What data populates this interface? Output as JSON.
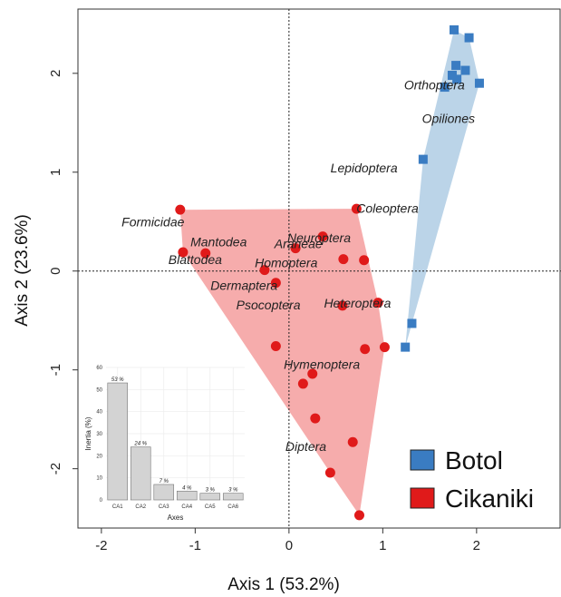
{
  "chart_data": [
    {
      "type": "scatter",
      "xlabel": "Axis 1 (53.2%)",
      "ylabel": "Axis 2 (23.6%)",
      "xlim": [
        -2.25,
        2.9
      ],
      "ylim": [
        -2.6,
        2.65
      ],
      "xticks": [
        "-2",
        "-1",
        "0",
        "1",
        "2"
      ],
      "yticks": [
        "-2",
        "-1",
        "0",
        "1",
        "2"
      ],
      "xtick_values": [
        -2,
        -1,
        0,
        1,
        2
      ],
      "ytick_values": [
        -2,
        -1,
        0,
        1,
        2
      ],
      "reference_lines": {
        "x": 0,
        "y": 0,
        "style": "dotted"
      },
      "legend_position": "bottom-right",
      "series": [
        {
          "name": "Botol",
          "marker": "square",
          "color": "#3a7cc2",
          "hull_color": "#b4cfe6",
          "points": [
            {
              "x": 1.76,
              "y": 2.44
            },
            {
              "x": 1.92,
              "y": 2.36
            },
            {
              "x": 1.78,
              "y": 2.08
            },
            {
              "x": 1.88,
              "y": 2.03
            },
            {
              "x": 1.74,
              "y": 1.98
            },
            {
              "x": 1.79,
              "y": 1.94
            },
            {
              "x": 2.03,
              "y": 1.9
            },
            {
              "x": 1.66,
              "y": 1.86
            },
            {
              "x": 1.43,
              "y": 1.13
            },
            {
              "x": 1.31,
              "y": -0.53
            },
            {
              "x": 1.24,
              "y": -0.77
            }
          ]
        },
        {
          "name": "Cikaniki",
          "marker": "circle",
          "color": "#e01a1a",
          "hull_color": "#f5a3a3",
          "points": [
            {
              "x": -1.16,
              "y": 0.62
            },
            {
              "x": 0.72,
              "y": 0.63
            },
            {
              "x": -1.13,
              "y": 0.19
            },
            {
              "x": -0.89,
              "y": 0.18
            },
            {
              "x": 0.36,
              "y": 0.35
            },
            {
              "x": 0.07,
              "y": 0.23
            },
            {
              "x": 0.58,
              "y": 0.12
            },
            {
              "x": 0.8,
              "y": 0.11
            },
            {
              "x": -0.26,
              "y": 0.01
            },
            {
              "x": -0.14,
              "y": -0.12
            },
            {
              "x": 0.57,
              "y": -0.35
            },
            {
              "x": 0.95,
              "y": -0.32
            },
            {
              "x": -0.14,
              "y": -0.76
            },
            {
              "x": 0.81,
              "y": -0.79
            },
            {
              "x": 1.02,
              "y": -0.77
            },
            {
              "x": 0.25,
              "y": -1.04
            },
            {
              "x": 0.15,
              "y": -1.14
            },
            {
              "x": 0.28,
              "y": -1.49
            },
            {
              "x": 0.68,
              "y": -1.73
            },
            {
              "x": 0.44,
              "y": -2.04
            },
            {
              "x": 0.75,
              "y": -2.47
            }
          ]
        }
      ],
      "labels": [
        {
          "text": "Orthoptera",
          "x": 1.55,
          "y": 1.84
        },
        {
          "text": "Opiliones",
          "x": 1.7,
          "y": 1.5
        },
        {
          "text": "Lepidoptera",
          "x": 0.8,
          "y": 1.0
        },
        {
          "text": "Coleoptera",
          "x": 1.05,
          "y": 0.59
        },
        {
          "text": "Formicidae",
          "x": -1.45,
          "y": 0.45
        },
        {
          "text": "Mantodea",
          "x": -0.75,
          "y": 0.25
        },
        {
          "text": "Neuroptera",
          "x": 0.32,
          "y": 0.29
        },
        {
          "text": "Araneae",
          "x": 0.1,
          "y": 0.23
        },
        {
          "text": "Blattodea",
          "x": -1.0,
          "y": 0.07
        },
        {
          "text": "Homoptera",
          "x": -0.03,
          "y": 0.04
        },
        {
          "text": "Dermaptera",
          "x": -0.48,
          "y": -0.19
        },
        {
          "text": "Psocoptera",
          "x": -0.22,
          "y": -0.39
        },
        {
          "text": "Heteroptera",
          "x": 0.73,
          "y": -0.37
        },
        {
          "text": "Hymenoptera",
          "x": 0.35,
          "y": -0.99
        },
        {
          "text": "Diptera",
          "x": 0.18,
          "y": -1.82
        }
      ]
    },
    {
      "type": "bar",
      "xlabel": "Axes",
      "ylabel": "Inertia (%)",
      "categories": [
        "CA1",
        "CA2",
        "CA3",
        "CA4",
        "CA5",
        "CA6"
      ],
      "values": [
        53,
        24,
        7,
        4,
        3,
        3
      ],
      "value_labels": [
        "53 %",
        "24 %",
        "7 %",
        "4 %",
        "3 %",
        "3 %"
      ],
      "ylim": [
        0,
        60
      ],
      "yticks": [
        "0",
        "10",
        "20",
        "30",
        "40",
        "50",
        "60"
      ],
      "ytick_values": [
        0,
        10,
        20,
        30,
        40,
        50,
        60
      ],
      "bar_color": "#d3d3d3",
      "position": "bottom-left inset"
    }
  ]
}
